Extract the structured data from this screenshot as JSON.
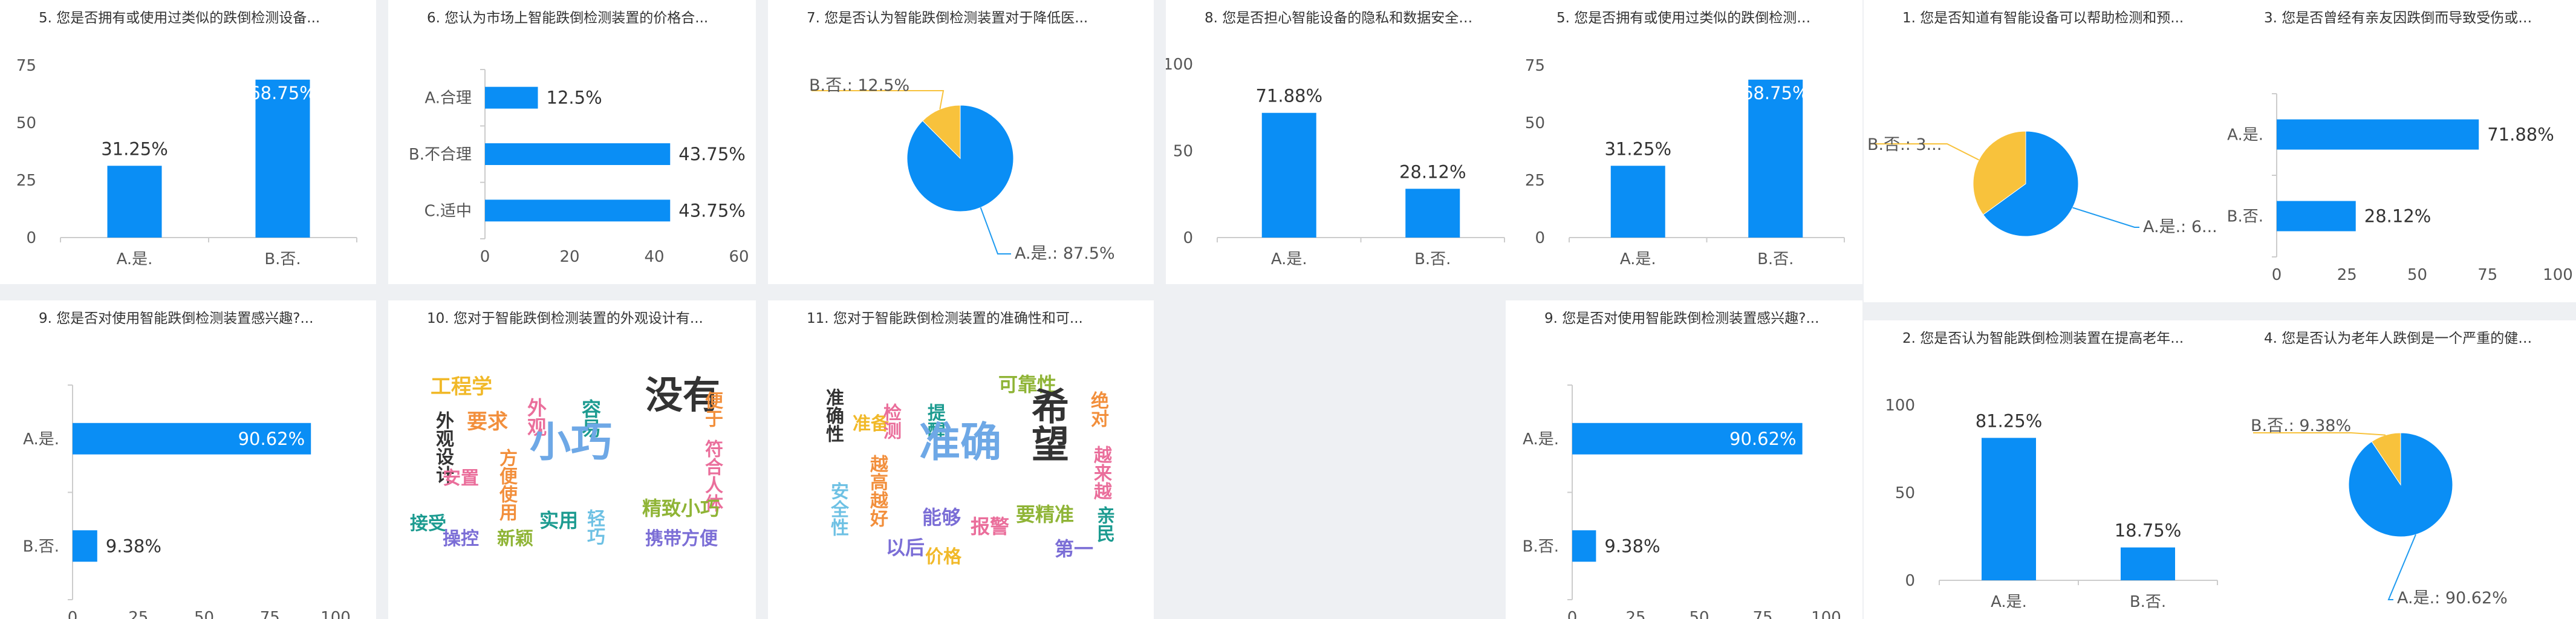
{
  "colors": {
    "blue": "#0a8ef5",
    "yellow": "#f8c23c",
    "axis": "#cccccc",
    "text": "#333333",
    "label": "#555555",
    "leader_blue": "#1f9bf0",
    "leader_yellow": "#f8c23c"
  },
  "chart_data": [
    {
      "id": "c1",
      "type": "bar",
      "orientation": "vertical",
      "title": "5. 您是否拥有或使用过类似的跌倒检测设备...",
      "categories": [
        "A.是.",
        "B.否."
      ],
      "values": [
        31.25,
        68.75
      ],
      "labels": [
        "31.25%",
        "68.75%"
      ],
      "yticks": [
        "0",
        "25",
        "50",
        "75"
      ],
      "ylim": [
        0,
        75
      ]
    },
    {
      "id": "c2",
      "type": "bar",
      "orientation": "horizontal",
      "title": "6. 您认为市场上智能跌倒检测装置的价格合...",
      "categories": [
        "A.合理",
        "B.不合理",
        "C.适中"
      ],
      "values": [
        12.5,
        43.75,
        43.75
      ],
      "labels": [
        "12.5%",
        "43.75%",
        "43.75%"
      ],
      "xticks": [
        "0",
        "20",
        "40",
        "60"
      ],
      "xlim": [
        0,
        60
      ]
    },
    {
      "id": "c3",
      "type": "pie",
      "title": "7. 您是否认为智能跌倒检测装置对于降低医...",
      "slices": [
        {
          "label": "A.是.: 87.5%",
          "value": 87.5
        },
        {
          "label": "B.否.: 12.5%",
          "value": 12.5
        }
      ]
    },
    {
      "id": "c4",
      "type": "bar",
      "orientation": "vertical",
      "title": "8. 您是否担心智能设备的隐私和数据安全问...",
      "categories": [
        "A.是.",
        "B.否."
      ],
      "values": [
        71.88,
        28.12
      ],
      "labels": [
        "71.88%",
        "28.12%"
      ],
      "yticks": [
        "0",
        "50",
        "100"
      ],
      "ylim": [
        0,
        100
      ]
    },
    {
      "id": "c5",
      "type": "bar",
      "orientation": "vertical",
      "title": "5. 您是否拥有或使用过类似的跌倒检测设备...",
      "categories": [
        "A.是.",
        "B.否."
      ],
      "values": [
        31.25,
        68.75
      ],
      "labels": [
        "31.25%",
        "68.75%"
      ],
      "yticks": [
        "0",
        "25",
        "50",
        "75"
      ],
      "ylim": [
        0,
        75
      ]
    },
    {
      "id": "c6",
      "type": "pie",
      "title": "1. 您是否知道有智能设备可以帮助检测和预...",
      "slices": [
        {
          "label": "A.是.: 6...",
          "value": 65
        },
        {
          "label": "B.否.: 3...",
          "value": 35
        }
      ]
    },
    {
      "id": "c7",
      "type": "bar",
      "orientation": "horizontal",
      "title": "3. 您是否曾经有亲友因跌倒而导致受伤或发...",
      "categories": [
        "A.是.",
        "B.否."
      ],
      "values": [
        71.88,
        28.12
      ],
      "labels": [
        "71.88%",
        "28.12%"
      ],
      "xticks": [
        "0",
        "25",
        "50",
        "75",
        "100"
      ],
      "xlim": [
        0,
        100
      ]
    },
    {
      "id": "c8",
      "type": "bar",
      "orientation": "horizontal",
      "title": "9. 您是否对使用智能跌倒检测装置感兴趣?...",
      "categories": [
        "A.是.",
        "B.否."
      ],
      "values": [
        90.62,
        9.38
      ],
      "labels": [
        "90.62%",
        "9.38%"
      ],
      "xticks": [
        "0",
        "25",
        "50",
        "75",
        "100"
      ],
      "xlim": [
        0,
        100
      ]
    },
    {
      "id": "c9",
      "type": "wordcloud",
      "title": "10. 您对于智能跌倒检测装置的外观设计有...",
      "words": [
        "工程学",
        "要求",
        "外观",
        "容易",
        "没有",
        "便于",
        "外观设计",
        "方便使用",
        "小巧",
        "符合人体",
        "安置",
        "实用",
        "精致小巧",
        "接受",
        "操控",
        "新颖",
        "轻巧",
        "携带方便"
      ]
    },
    {
      "id": "c10",
      "type": "wordcloud",
      "title": "11. 您对于智能跌倒检测装置的准确性和可...",
      "words": [
        "准确性",
        "准备",
        "检测",
        "提醒",
        "可靠性",
        "希望",
        "绝对",
        "越来越",
        "准确",
        "越高越好",
        "安全性",
        "能够",
        "要精准",
        "亲民",
        "以后",
        "价格",
        "报警",
        "第一"
      ]
    },
    {
      "id": "c11",
      "type": "bar",
      "orientation": "horizontal",
      "title": "9. 您是否对使用智能跌倒检测装置感兴趣?...",
      "categories": [
        "A.是.",
        "B.否."
      ],
      "values": [
        90.62,
        9.38
      ],
      "labels": [
        "90.62%",
        "9.38%"
      ],
      "xticks": [
        "0",
        "25",
        "50",
        "75",
        "100"
      ],
      "xlim": [
        0,
        100
      ]
    },
    {
      "id": "c12",
      "type": "bar",
      "orientation": "vertical",
      "title": "2. 您是否认为智能跌倒检测装置在提高老年...",
      "categories": [
        "A.是.",
        "B.否."
      ],
      "values": [
        81.25,
        18.75
      ],
      "labels": [
        "81.25%",
        "18.75%"
      ],
      "yticks": [
        "0",
        "50",
        "100"
      ],
      "ylim": [
        0,
        100
      ]
    },
    {
      "id": "c13",
      "type": "pie",
      "title": "4. 您是否认为老年人跌倒是一个严重的健康...",
      "slices": [
        {
          "label": "A.是.: 90.62%",
          "value": 90.62
        },
        {
          "label": "B.否.: 9.38%",
          "value": 9.38
        }
      ]
    }
  ]
}
